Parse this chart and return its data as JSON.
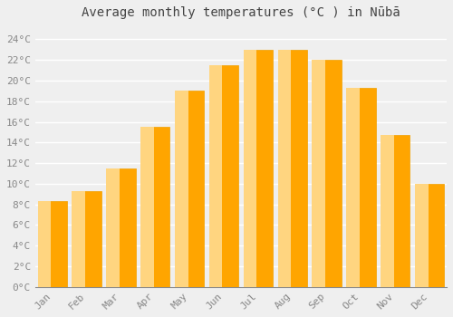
{
  "months": [
    "Jan",
    "Feb",
    "Mar",
    "Apr",
    "May",
    "Jun",
    "Jul",
    "Aug",
    "Sep",
    "Oct",
    "Nov",
    "Dec"
  ],
  "temperatures": [
    8.3,
    9.3,
    11.5,
    15.5,
    19.0,
    21.5,
    23.0,
    23.0,
    22.0,
    19.3,
    14.7,
    10.0
  ],
  "bar_color_main": "#FFA500",
  "bar_color_light": "#FFD580",
  "bar_edge_color": "#F0A000",
  "title": "Average monthly temperatures (°C ) in Nūbā",
  "title_fontsize": 10,
  "ylabel_ticks": [
    0,
    2,
    4,
    6,
    8,
    10,
    12,
    14,
    16,
    18,
    20,
    22,
    24
  ],
  "ylim": [
    0,
    25.5
  ],
  "background_color": "#efefef",
  "grid_color": "#ffffff",
  "tick_label_color": "#888888",
  "bar_width": 0.85,
  "figsize": [
    5.0,
    3.5
  ],
  "dpi": 100
}
